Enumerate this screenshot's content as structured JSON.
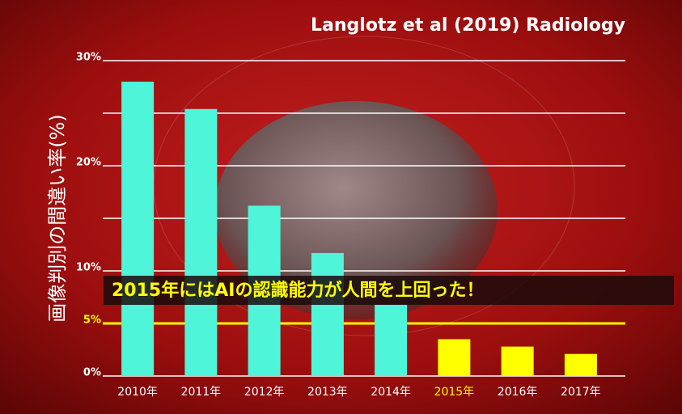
{
  "chart_data": {
    "type": "bar",
    "title": "Langlotz et al (2019) Radiology",
    "y_label": "画像判別の間違い率(%)",
    "annotation": "2015年にはAIの認識能力が人間を上回った！",
    "categories": [
      "2010年",
      "2011年",
      "2012年",
      "2013年",
      "2014年",
      "2015年",
      "2016年",
      "2017年"
    ],
    "values": [
      28.0,
      25.4,
      16.2,
      11.7,
      6.8,
      3.5,
      2.8,
      2.1
    ],
    "colors": [
      "#4ff5d9",
      "#4ff5d9",
      "#4ff5d9",
      "#4ff5d9",
      "#4ff5d9",
      "#ffff00",
      "#ffff00",
      "#ffff00"
    ],
    "highlight_index": 5,
    "highlight_color": "#ffff00",
    "ylim": [
      0,
      30
    ],
    "yticks": [
      {
        "value": 0,
        "label": "0%"
      },
      {
        "value": 5,
        "label": "5%"
      },
      {
        "value": 10,
        "label": "10%"
      },
      {
        "value": 20,
        "label": "20%"
      },
      {
        "value": 30,
        "label": "30%"
      }
    ],
    "minor_gridlines": [
      15,
      25
    ],
    "reference_line": {
      "value": 5,
      "color": "#ffff00"
    },
    "grid": true
  }
}
